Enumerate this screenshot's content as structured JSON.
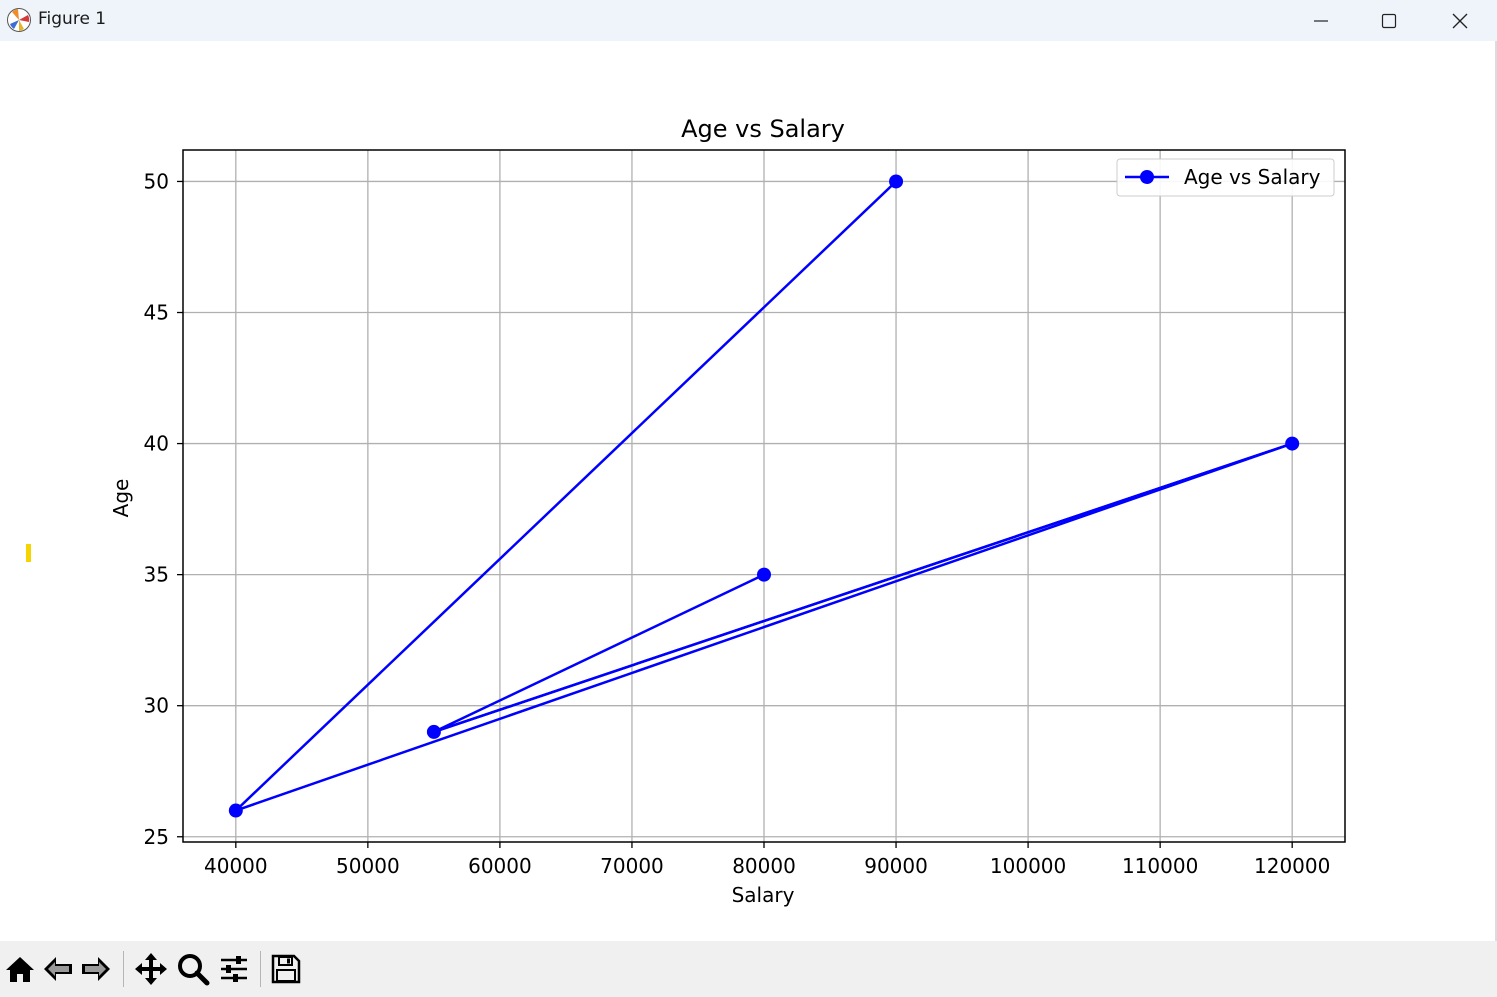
{
  "window": {
    "title": "Figure 1",
    "buttons": [
      "minimize",
      "maximize",
      "close"
    ]
  },
  "toolbar": {
    "tools": [
      "home-icon",
      "back-icon",
      "forward-icon",
      "pan-icon",
      "zoom-icon",
      "configure-subplots-icon",
      "save-icon"
    ]
  },
  "colors": {
    "series": "#0000ff",
    "grid": "#b0b0b0",
    "titlebar": "#eef4f9",
    "toolbar": "#f0f0f0"
  },
  "chart_data": {
    "type": "line",
    "title": "Age vs Salary",
    "xlabel": "Salary",
    "ylabel": "Age",
    "xlim": [
      36000,
      124000
    ],
    "ylim": [
      24.8,
      51.2
    ],
    "xticks": [
      40000,
      50000,
      60000,
      70000,
      80000,
      90000,
      100000,
      110000,
      120000
    ],
    "yticks": [
      25,
      30,
      35,
      40,
      45,
      50
    ],
    "grid": true,
    "legend": "top-right",
    "series": [
      {
        "name": "Age vs Salary",
        "marker": "circle",
        "x": [
          80000,
          55000,
          120000,
          40000,
          90000
        ],
        "y": [
          35,
          29,
          40,
          26,
          50
        ]
      },
      {
        "x": [
          55000,
          120000
        ],
        "y": [
          29,
          40
        ]
      }
    ]
  }
}
